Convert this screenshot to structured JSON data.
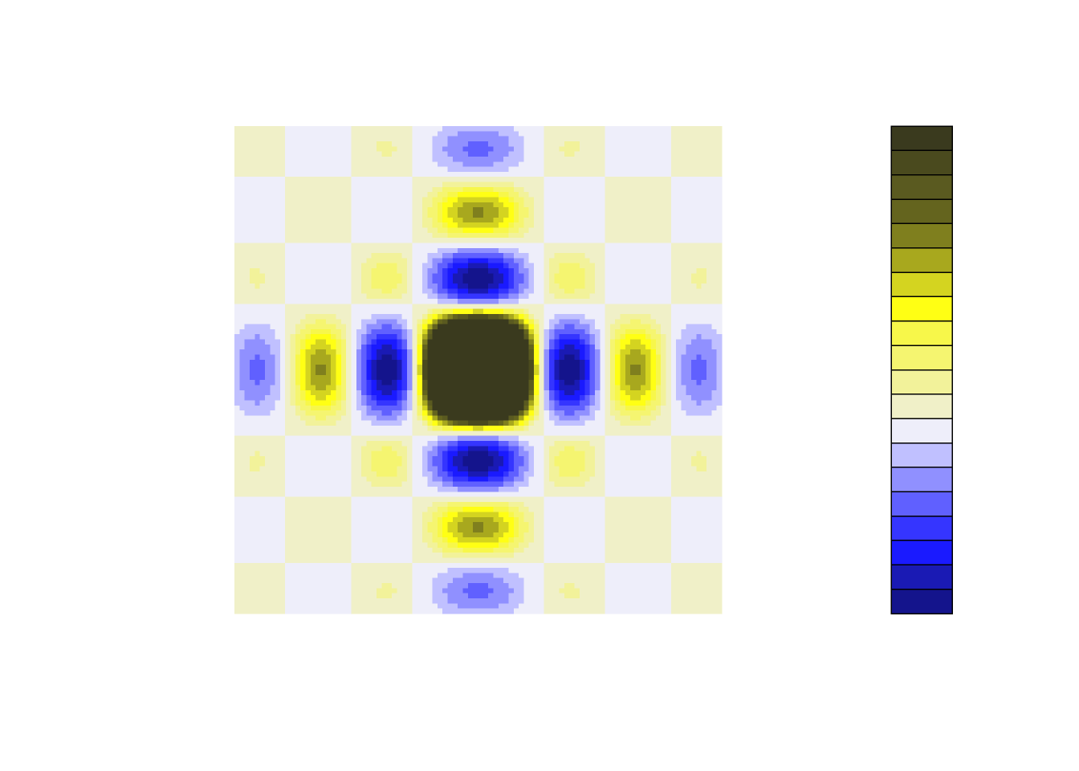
{
  "chart_data": {
    "type": "contour",
    "colors": [
      "#14148c",
      "#1a1ab4",
      "#1a1aff",
      "#3535ff",
      "#6060ff",
      "#9090ff",
      "#c0c0ff",
      "#eeeefa",
      "#f0f0c8",
      "#f2f29a",
      "#f5f570",
      "#f7f74a",
      "#ffff14",
      "#d4d420",
      "#a8a81e",
      "#7f7f1e",
      "#64641e",
      "#5a5a20",
      "#4a4a1e",
      "#3a3a1e"
    ]
  }
}
